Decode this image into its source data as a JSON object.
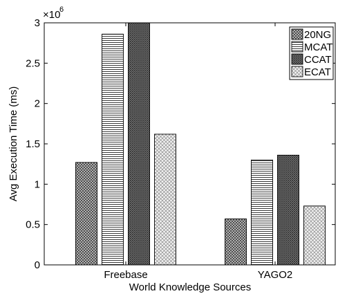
{
  "chart_data": {
    "type": "bar",
    "xlabel": "World Knowledge Sources",
    "ylabel": "Avg Execution Time (ms)",
    "multiplier_base": "×10",
    "multiplier_exp": "6",
    "categories": [
      "Freebase",
      "YAGO2"
    ],
    "ylim": [
      0,
      3
    ],
    "yticks": [
      0,
      0.5,
      1,
      1.5,
      2,
      2.5,
      3
    ],
    "ytick_labels": [
      "0",
      "0.5",
      "1",
      "1.5",
      "2",
      "2.5",
      "3"
    ],
    "series": [
      {
        "name": "20NG",
        "values": [
          1.27,
          0.57
        ],
        "pattern": "crosshatch-dense"
      },
      {
        "name": "MCAT",
        "values": [
          2.86,
          1.3
        ],
        "pattern": "horizontal-lines"
      },
      {
        "name": "CCAT",
        "values": [
          3.0,
          1.36
        ],
        "pattern": "crosshatch-dark"
      },
      {
        "name": "ECAT",
        "values": [
          1.62,
          0.73
        ],
        "pattern": "diagonal-light"
      }
    ],
    "legend_position": "top-right",
    "grid": false
  }
}
